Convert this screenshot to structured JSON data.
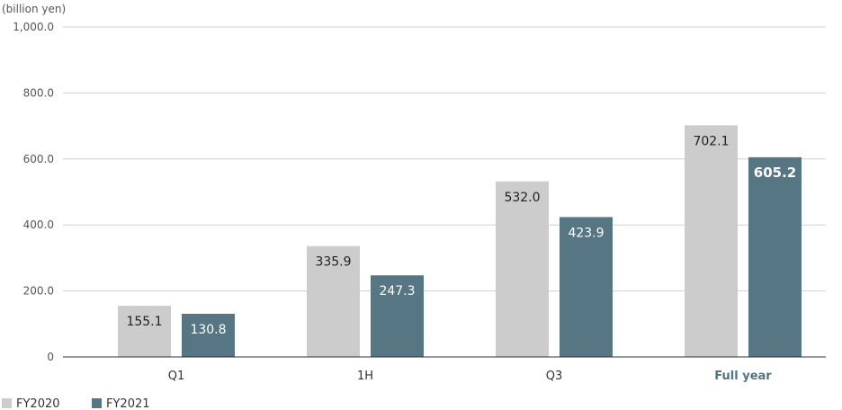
{
  "chart_data": {
    "type": "bar",
    "unit_label": "(billion yen)",
    "categories": [
      "Q1",
      "1H",
      "Q3",
      "Full year"
    ],
    "highlight_category": "Full year",
    "series": [
      {
        "name": "FY2020",
        "color": "#cccccc",
        "values": [
          155.1,
          335.9,
          532.0,
          702.1
        ],
        "labels": [
          "155.1",
          "335.9",
          "532.0",
          "702.1"
        ]
      },
      {
        "name": "FY2021",
        "color": "#557682",
        "values": [
          130.8,
          247.3,
          423.9,
          605.2
        ],
        "labels": [
          "130.8",
          "247.3",
          "423.9",
          "605.2"
        ]
      }
    ],
    "ylim": [
      0,
      1000
    ],
    "yticks": [
      0,
      200,
      400,
      600,
      800,
      1000
    ],
    "ytick_labels": [
      "0",
      "200.0",
      "400.0",
      "600.0",
      "800.0",
      "1,000.0"
    ],
    "highlight_color": "#52737f",
    "grid": true,
    "legend_position": "bottom-left"
  }
}
